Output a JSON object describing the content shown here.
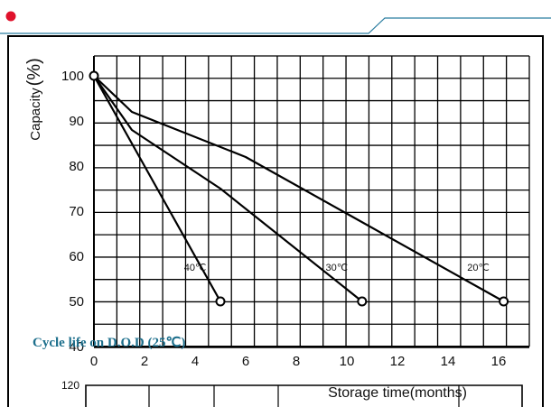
{
  "theme": {
    "accent": "#e0112b",
    "rule": "#2b7da0",
    "line": "#000000",
    "caption": "#1d6f8c"
  },
  "chart_data": {
    "type": "line",
    "xlabel": "Storage time(months)",
    "ylabel_main": "Capacity",
    "ylabel_unit": "(%)",
    "xlim": [
      0,
      16
    ],
    "ylim": [
      40,
      100
    ],
    "x_ticks": [
      "0",
      "2",
      "4",
      "6",
      "8",
      "10",
      "12",
      "14",
      "16"
    ],
    "y_ticks": [
      "40",
      "50",
      "60",
      "70",
      "80",
      "90",
      "100"
    ],
    "grid": true,
    "series": [
      {
        "name": "40℃",
        "points": [
          [
            0,
            100
          ],
          [
            1.5,
            85
          ],
          [
            3,
            70
          ],
          [
            5,
            50
          ]
        ]
      },
      {
        "name": "30℃",
        "points": [
          [
            0,
            100
          ],
          [
            1.5,
            88
          ],
          [
            5,
            75
          ],
          [
            10.6,
            50
          ]
        ]
      },
      {
        "name": "20℃",
        "points": [
          [
            0,
            100
          ],
          [
            1.5,
            92
          ],
          [
            6,
            82
          ],
          [
            16.2,
            50
          ]
        ]
      }
    ],
    "second_chart_title": "Cycle life on D.O.D (25℃)",
    "second_chart_y_tick": "120"
  }
}
